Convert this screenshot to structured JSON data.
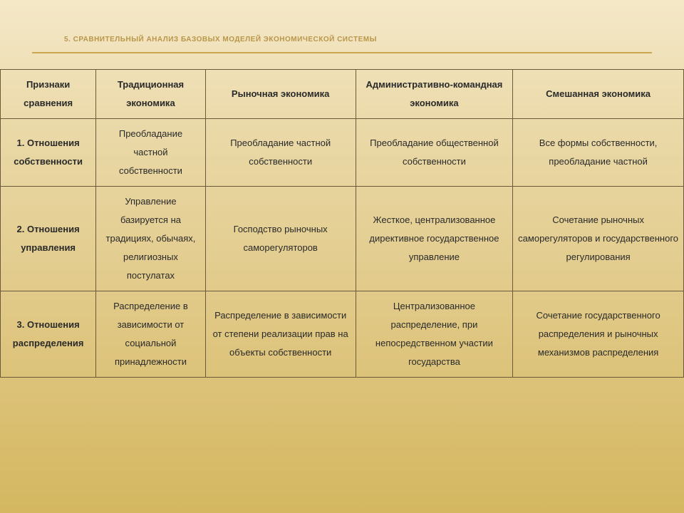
{
  "title": "5. Сравнительный анализ базовых моделей экономической системы",
  "table": {
    "headers": [
      "Признаки сравнения",
      "Традиционная экономика",
      "Рыночная экономика",
      "Административно-командная экономика",
      "Смешанная экономика"
    ],
    "rows": [
      {
        "label": "1. Отношения собственности",
        "cells": [
          "Преобладание частной собственности",
          "Преобладание частной собственности",
          "Преобладание общественной собственности",
          "Все формы собственности, преобладание частной"
        ]
      },
      {
        "label": "2. Отношения управления",
        "cells": [
          "Управление базируется на традициях, обычаях, религиозных постулатах",
          "Господство рыночных саморегуляторов",
          "Жесткое, централизованное директивное государственное управление",
          "Сочетание рыночных саморегуляторов и государственного регулирования"
        ]
      },
      {
        "label": "3. Отношения распределения",
        "cells": [
          "Распределение в зависимости от социальной принадлежности",
          "Распределение в зависимости от степени реализации прав на объекты собственности",
          "Централизованное распределение, при непосредственном участии государства",
          "Сочетание государственного распределения и рыночных механизмов распределения"
        ]
      }
    ]
  },
  "style": {
    "background_gradient_top": "#f5e8c8",
    "background_gradient_bottom": "#d4b760",
    "border_color": "#6b5a3a",
    "title_color": "#b8964a",
    "underline_color": "#c9a84f",
    "text_color": "#2a2a2a",
    "header_fontsize": 13,
    "cell_fontsize": 13,
    "title_fontsize": 10
  }
}
